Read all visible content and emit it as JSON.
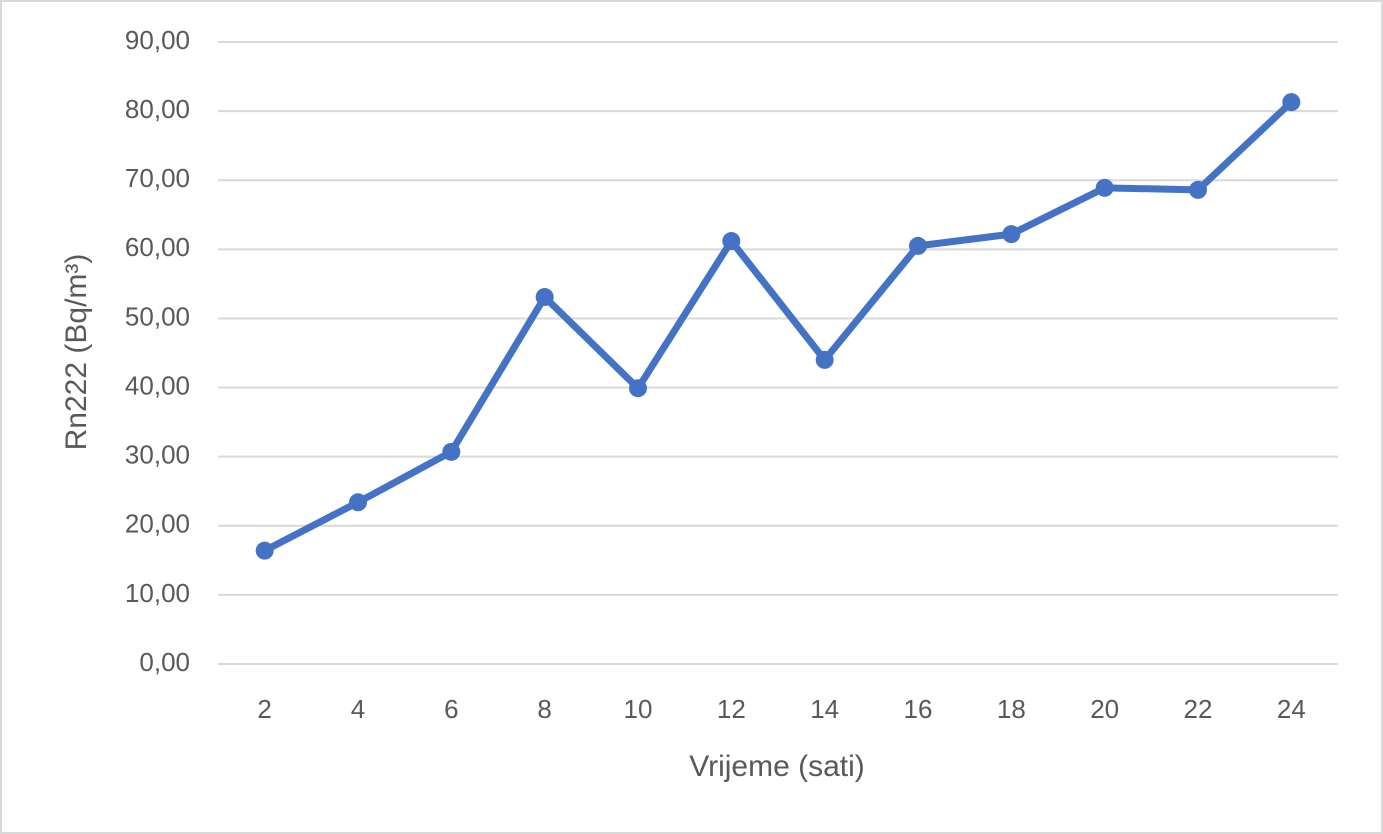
{
  "chart_data": {
    "type": "line",
    "x_label": "Vrijeme (sati)",
    "y_label": "Rn222 (Bq/m³)",
    "categories": [
      "2",
      "4",
      "6",
      "8",
      "10",
      "12",
      "14",
      "16",
      "18",
      "20",
      "22",
      "24"
    ],
    "series": [
      {
        "name": "Rn222",
        "color": "#4472c4",
        "values": [
          16.4,
          23.4,
          30.7,
          53.1,
          39.9,
          61.2,
          44.0,
          60.5,
          62.2,
          68.9,
          68.6,
          81.3
        ]
      }
    ],
    "ylim": [
      0,
      90
    ],
    "yticks": [
      {
        "value": 0,
        "label": "0,00"
      },
      {
        "value": 10,
        "label": "10,00"
      },
      {
        "value": 20,
        "label": "20,00"
      },
      {
        "value": 30,
        "label": "30,00"
      },
      {
        "value": 40,
        "label": "40,00"
      },
      {
        "value": 50,
        "label": "50,00"
      },
      {
        "value": 60,
        "label": "60,00"
      },
      {
        "value": 70,
        "label": "70,00"
      },
      {
        "value": 80,
        "label": "80,00"
      },
      {
        "value": 90,
        "label": "90,00"
      }
    ],
    "grid": true
  }
}
